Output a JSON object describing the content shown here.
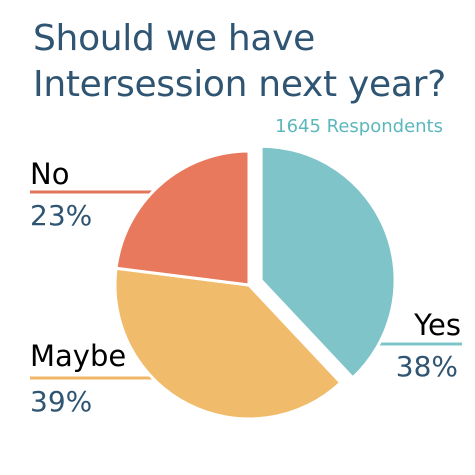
{
  "chart_data": {
    "type": "pie",
    "title": "Should we have",
    "title_line2": "Intersession next year?",
    "subtitle": "1645 Respondents",
    "slices": [
      {
        "label": "Yes",
        "value": 38,
        "value_label": "38%",
        "color": "#7fc4c8",
        "label_color": "#3f8f9e",
        "exploded": true
      },
      {
        "label": "Maybe",
        "value": 39,
        "value_label": "39%",
        "color": "#f0bb6b",
        "label_color": "#efb766",
        "exploded": false
      },
      {
        "label": "No",
        "value": 23,
        "value_label": "23%",
        "color": "#e8795c",
        "label_color": "#e3765a",
        "exploded": false
      }
    ],
    "legend": "none",
    "grid": false
  }
}
